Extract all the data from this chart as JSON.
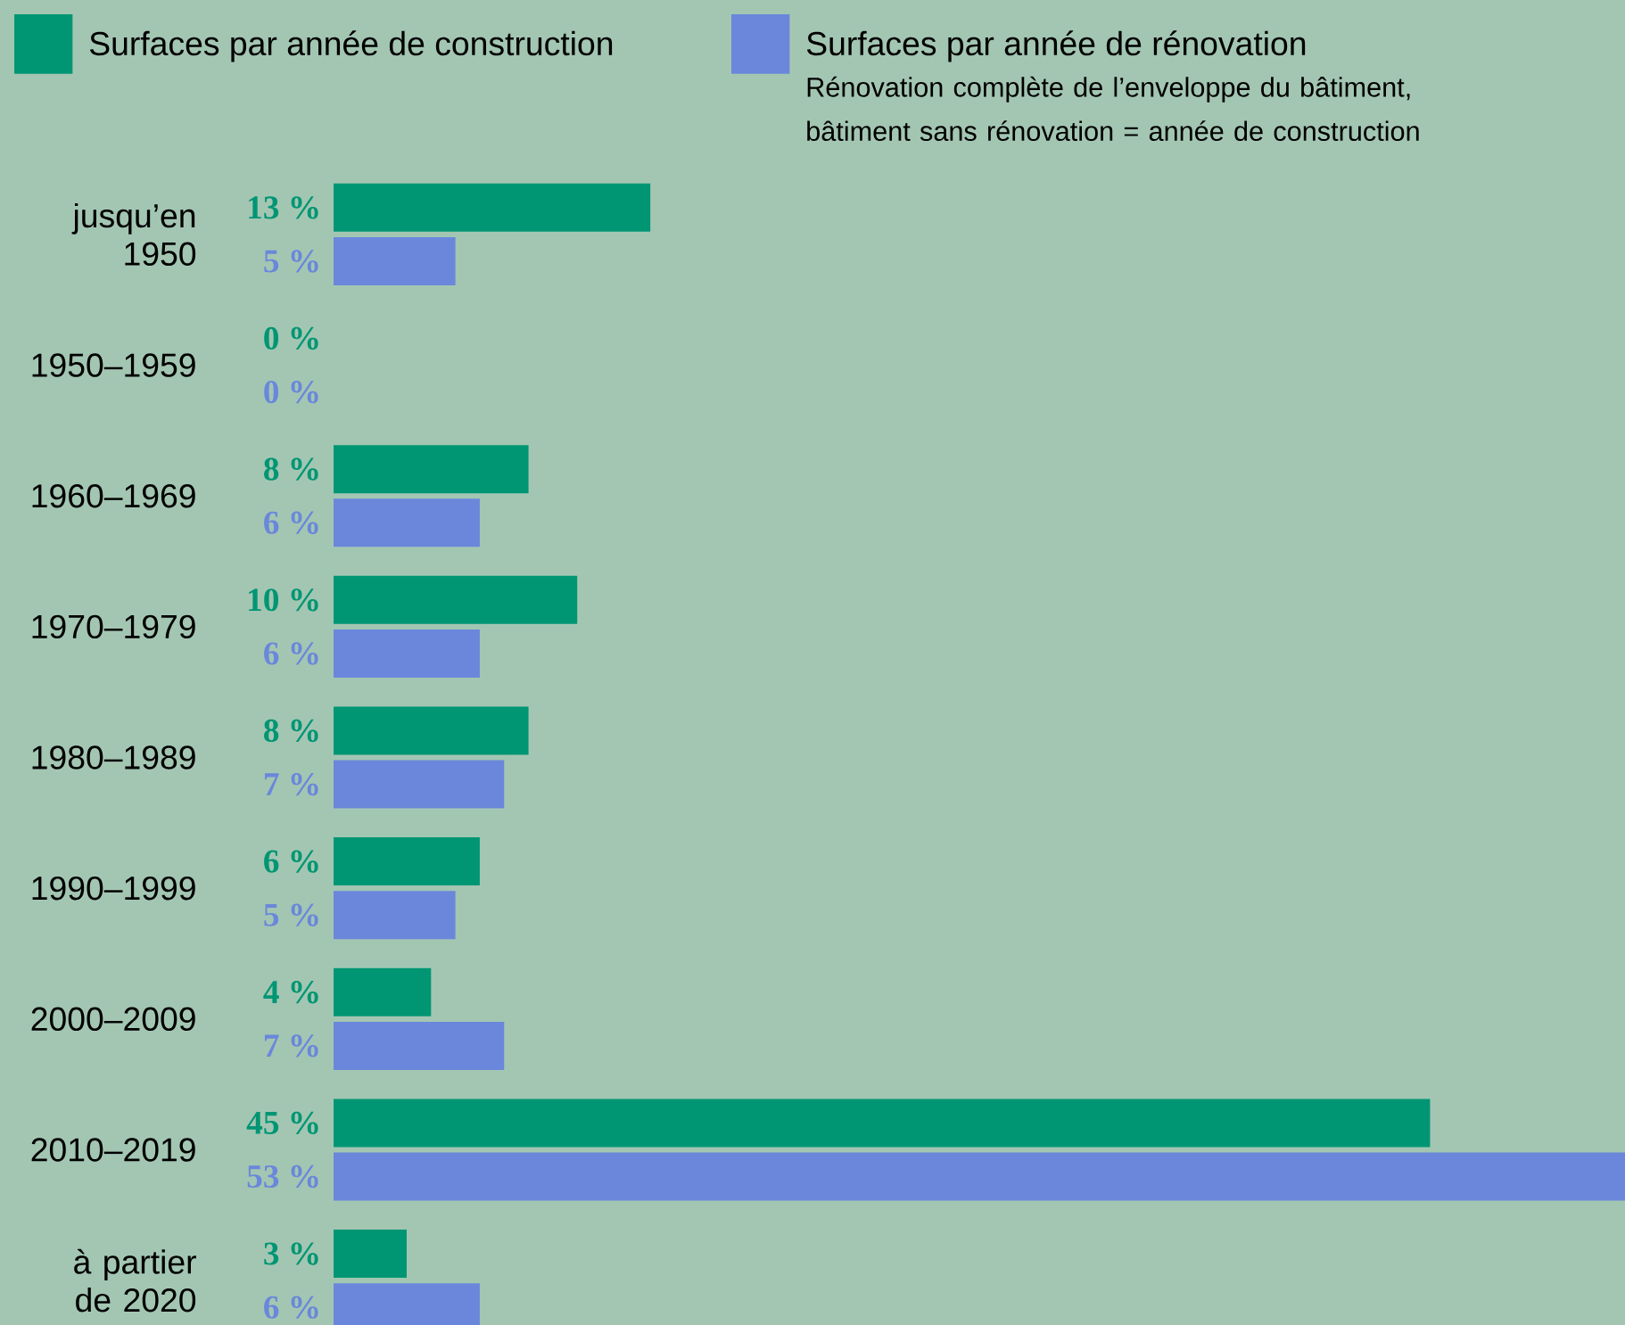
{
  "chart_data": {
    "type": "bar",
    "orientation": "horizontal",
    "legend": "top",
    "categories": [
      "jusqu’en 1950",
      "1950–1959",
      "1960–1969",
      "1970–1979",
      "1980–1989",
      "1990–1999",
      "2000–2009",
      "2010–2019",
      "à partier de 2020"
    ],
    "series": [
      {
        "name": "Surfaces par année de construction",
        "color": "#009673",
        "values": [
          13,
          0,
          8,
          10,
          8,
          6,
          4,
          45,
          3
        ],
        "value_labels": [
          "13 %",
          "0 %",
          "8 %",
          "10 %",
          "8 %",
          "6 %",
          "4 %",
          "45 %",
          "3 %"
        ]
      },
      {
        "name": "Surfaces par année de rénovation",
        "color": "#6a87db",
        "values": [
          5,
          0,
          6,
          6,
          7,
          5,
          7,
          53,
          6
        ],
        "value_labels": [
          "5 %",
          "0 %",
          "6 %",
          "6 %",
          "7 %",
          "5 %",
          "7 %",
          "53 %",
          "6 %"
        ]
      }
    ],
    "annotations": [
      "Rénovation complète de l’enveloppe du bâtiment, bâtiment sans rénovation = année de construction"
    ]
  }
}
